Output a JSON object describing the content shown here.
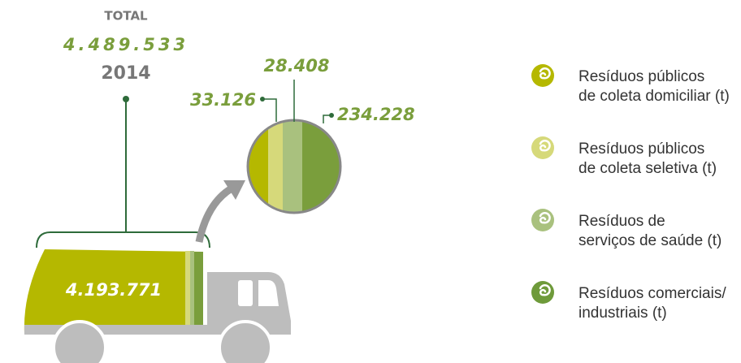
{
  "total": {
    "label": "TOTAL",
    "value": "4.489.533",
    "year": "2014"
  },
  "truck": {
    "value": "4.193.771"
  },
  "parts": [
    "33.126",
    "28.408",
    "234.228"
  ],
  "legend": [
    {
      "lines": [
        "Resíduos públicos",
        "de coleta domiciliar (t)"
      ]
    },
    {
      "lines": [
        "Resíduos públicos",
        "de coleta seletiva (t)"
      ]
    },
    {
      "lines": [
        "Resíduos de",
        "serviços de saúde (t)"
      ]
    },
    {
      "lines": [
        "Resíduos comerciais/",
        "industriais (t)"
      ]
    }
  ]
}
